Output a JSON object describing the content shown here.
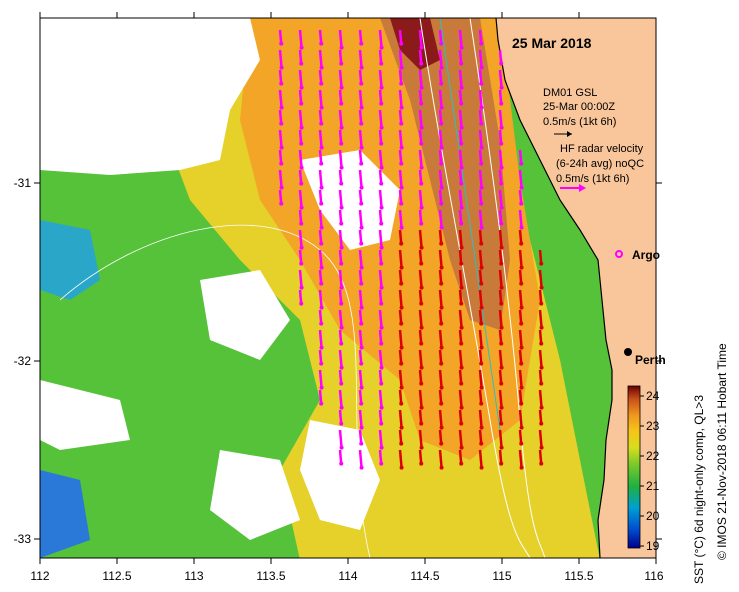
{
  "date": "25 Mar 2018",
  "axes": {
    "lon_ticks": [
      "112",
      "112.5",
      "113",
      "113.5",
      "114",
      "114.5",
      "115",
      "115.5",
      "116"
    ],
    "lat_ticks": [
      "-31",
      "-32",
      "-33"
    ]
  },
  "legend": {
    "glider_name": "DM01 GSL",
    "glider_time": "25-Mar 00:00Z",
    "glider_scale": "0.5m/s (1kt 6h)",
    "radar_title": "HF radar velocity",
    "radar_avg": "(6-24h avg) noQC",
    "radar_scale": "0.5m/s (1kt 6h)",
    "argo_label": "Argo"
  },
  "places": {
    "city": "Perth"
  },
  "colorbar": {
    "ticks": [
      "24",
      "23",
      "22",
      "21",
      "20",
      "19"
    ],
    "title": "SST (°C) 6d night-only comp, QL>3"
  },
  "credit": "© IMOS 21-Nov-2018 06:11 Hobart Time",
  "colors": {
    "land": "#f9c69b",
    "cloud": "#ffffff",
    "vector_radar_offshore": "#ff00ff",
    "vector_radar_inshore": "#dd0000",
    "argo_marker": "#ff00ff"
  }
}
